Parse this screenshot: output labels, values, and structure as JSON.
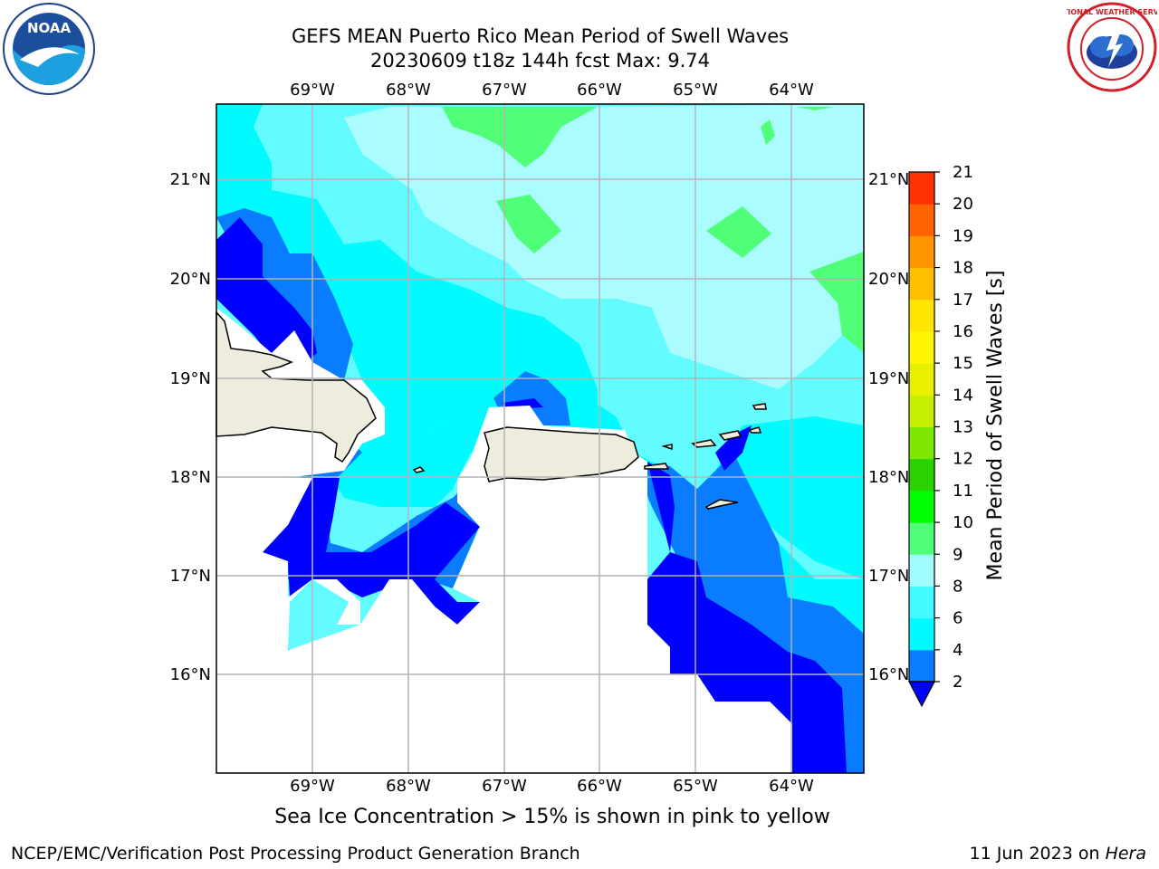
{
  "header": {
    "title_line1": "GEFS MEAN Puerto Rico Mean Period of Swell Waves",
    "title_line2": "20230609 t18z 144h fcst   Max: 9.74"
  },
  "logos": {
    "left": {
      "text": "NOAA",
      "ring_text": "NATIONAL OCEANIC AND ATMOSPHERIC ADMINISTRATION · U.S. DEPARTMENT OF COMMERCE"
    },
    "right": {
      "text": "NATIONAL WEATHER SERVICE"
    }
  },
  "map": {
    "lon_labels": [
      "69°W",
      "68°W",
      "67°W",
      "66°W",
      "65°W",
      "64°W"
    ],
    "lat_labels": [
      "21°N",
      "20°N",
      "19°N",
      "18°N",
      "17°N",
      "16°N"
    ],
    "colors": {
      "land": "#eeecdc",
      "c2_4": "#0000ff",
      "c4_6": "#0a7cff",
      "c6_8": "#00fbff",
      "c8_9": "#62fbff",
      "c9_10": "#aafcff",
      "c10_11": "#50ff78"
    }
  },
  "colorbar": {
    "label": "Mean Period of Swell Waves [s]",
    "ticks": [
      "2",
      "4",
      "6",
      "8",
      "9",
      "10",
      "11",
      "12",
      "13",
      "14",
      "15",
      "16",
      "17",
      "18",
      "19",
      "20",
      "21"
    ],
    "colors": [
      "#0a7cff",
      "#00fbff",
      "#42faff",
      "#9ffdff",
      "#50ff78",
      "#00ff00",
      "#2ad200",
      "#7ee800",
      "#c4f000",
      "#e8f000",
      "#fff500",
      "#ffe600",
      "#ffbe00",
      "#ff9600",
      "#ff6400",
      "#ff3200",
      "#ff0000"
    ],
    "under_color": "#0000ff"
  },
  "footer": {
    "sea_ice_note": "Sea Ice Concentration > 15% is shown in pink to yellow",
    "credit": "NCEP/EMC/Verification Post Processing Product Generation Branch",
    "date": "11 Jun 2023 on ",
    "host": "Hera"
  }
}
